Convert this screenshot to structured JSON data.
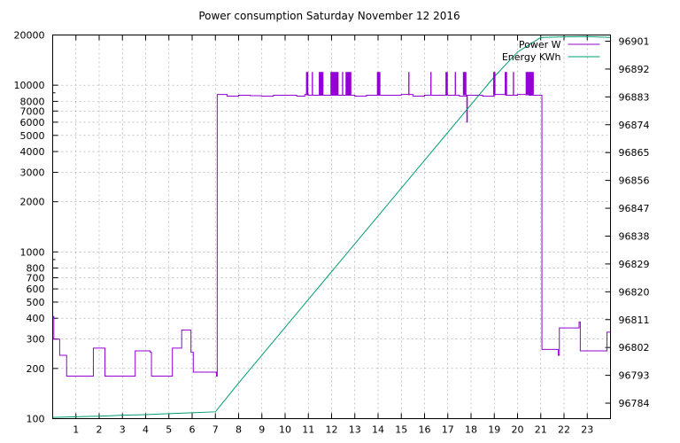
{
  "chart_data": {
    "type": "line",
    "title": "Power consumption Saturday November 12 2016",
    "xlabel": "",
    "ylabel": "",
    "xlim": [
      0,
      24
    ],
    "x_ticks": [
      "1",
      "2",
      "3",
      "4",
      "5",
      "6",
      "7",
      "8",
      "9",
      "10",
      "11",
      "12",
      "13",
      "14",
      "15",
      "16",
      "17",
      "18",
      "19",
      "20",
      "21",
      "22",
      "23"
    ],
    "y_scale": "log",
    "ylim": [
      100,
      20000
    ],
    "y_ticks": [
      "100",
      "200",
      "300",
      "400",
      "500",
      "600",
      "700",
      "800",
      "1000",
      "2000",
      "3000",
      "4000",
      "5000",
      "6000",
      "7000",
      "8000",
      "10000",
      "20000"
    ],
    "y2_ticks": [
      "96784",
      "96793",
      "96802",
      "96811",
      "96820",
      "96829",
      "96838",
      "96847",
      "96856",
      "96865",
      "96874",
      "96883",
      "96892",
      "96901"
    ],
    "y2lim": [
      96779,
      96903
    ],
    "grid": true,
    "legend_position": "top-right",
    "series": [
      {
        "name": "Power W",
        "color": "#9400d3",
        "axis": "y",
        "points": [
          [
            0,
            410
          ],
          [
            0.05,
            300
          ],
          [
            0.2,
            300
          ],
          [
            0.3,
            240
          ],
          [
            0.5,
            240
          ],
          [
            0.6,
            180
          ],
          [
            1.1,
            180
          ],
          [
            1.7,
            180
          ],
          [
            1.75,
            265
          ],
          [
            2.2,
            265
          ],
          [
            2.25,
            180
          ],
          [
            3.5,
            180
          ],
          [
            3.55,
            255
          ],
          [
            4.0,
            255
          ],
          [
            4.2,
            250
          ],
          [
            4.25,
            180
          ],
          [
            5.1,
            180
          ],
          [
            5.15,
            265
          ],
          [
            5.5,
            265
          ],
          [
            5.55,
            340
          ],
          [
            5.9,
            340
          ],
          [
            5.95,
            250
          ],
          [
            6.0,
            250
          ],
          [
            6.05,
            190
          ],
          [
            7.0,
            190
          ],
          [
            7.05,
            180
          ],
          [
            7.08,
            8800
          ],
          [
            7.5,
            8600
          ],
          [
            8.0,
            8700
          ],
          [
            8.5,
            8650
          ],
          [
            9.0,
            8600
          ],
          [
            9.5,
            8700
          ],
          [
            10.0,
            8700
          ],
          [
            10.5,
            8600
          ],
          [
            10.85,
            8800
          ],
          [
            11.0,
            8700
          ],
          [
            11.5,
            8700
          ],
          [
            12.0,
            8700
          ],
          [
            12.5,
            8700
          ],
          [
            13.0,
            8600
          ],
          [
            13.5,
            8700
          ],
          [
            14.0,
            8700
          ],
          [
            14.5,
            8700
          ],
          [
            15.0,
            8800
          ],
          [
            15.5,
            8600
          ],
          [
            16.0,
            8700
          ],
          [
            16.5,
            8700
          ],
          [
            17.0,
            8700
          ],
          [
            17.5,
            8600
          ],
          [
            17.8,
            8700
          ],
          [
            17.82,
            6000
          ],
          [
            17.84,
            8700
          ],
          [
            18.0,
            8700
          ],
          [
            18.5,
            8600
          ],
          [
            19.0,
            8800
          ],
          [
            19.5,
            8700
          ],
          [
            20.0,
            8800
          ],
          [
            20.5,
            8700
          ],
          [
            21.0,
            8700
          ],
          [
            21.05,
            260
          ],
          [
            21.7,
            260
          ],
          [
            21.75,
            240
          ],
          [
            21.8,
            350
          ],
          [
            22.0,
            350
          ],
          [
            22.6,
            350
          ],
          [
            22.65,
            380
          ],
          [
            22.7,
            255
          ],
          [
            23.0,
            255
          ],
          [
            23.8,
            255
          ],
          [
            23.85,
            330
          ],
          [
            24.0,
            330
          ]
        ]
      },
      {
        "name": "Energy KWh",
        "color": "#009e73",
        "axis": "y2",
        "points": [
          [
            0,
            96779.4
          ],
          [
            1,
            96779.6
          ],
          [
            2,
            96779.8
          ],
          [
            3,
            96780.1
          ],
          [
            4,
            96780.3
          ],
          [
            5,
            96780.6
          ],
          [
            6,
            96780.9
          ],
          [
            7,
            96781.2
          ],
          [
            8,
            96790.5
          ],
          [
            9,
            96799.5
          ],
          [
            10,
            96808.5
          ],
          [
            11,
            96817.5
          ],
          [
            12,
            96826.5
          ],
          [
            13,
            96835.5
          ],
          [
            14,
            96844.5
          ],
          [
            15,
            96853.5
          ],
          [
            16,
            96862.5
          ],
          [
            17,
            96871.5
          ],
          [
            18,
            96880.5
          ],
          [
            19,
            96889.5
          ],
          [
            20,
            96897.5
          ],
          [
            21,
            96902.2
          ],
          [
            22,
            96902.4
          ],
          [
            23,
            96902.5
          ],
          [
            24,
            96902.2
          ]
        ]
      }
    ],
    "bursts": {
      "color": "#9400d3",
      "low": 8700,
      "high": 12000,
      "intervals": [
        [
          10.9,
          11.0
        ],
        [
          11.15,
          11.2
        ],
        [
          11.45,
          11.65
        ],
        [
          11.95,
          12.3
        ],
        [
          12.45,
          12.5
        ],
        [
          12.6,
          12.85
        ],
        [
          13.95,
          14.1
        ],
        [
          15.3,
          15.35
        ],
        [
          16.25,
          16.3
        ],
        [
          16.9,
          17.0
        ],
        [
          17.3,
          17.35
        ],
        [
          17.65,
          17.8
        ],
        [
          18.95,
          19.05
        ],
        [
          19.45,
          19.55
        ],
        [
          19.8,
          19.85
        ],
        [
          20.35,
          20.7
        ]
      ]
    }
  }
}
